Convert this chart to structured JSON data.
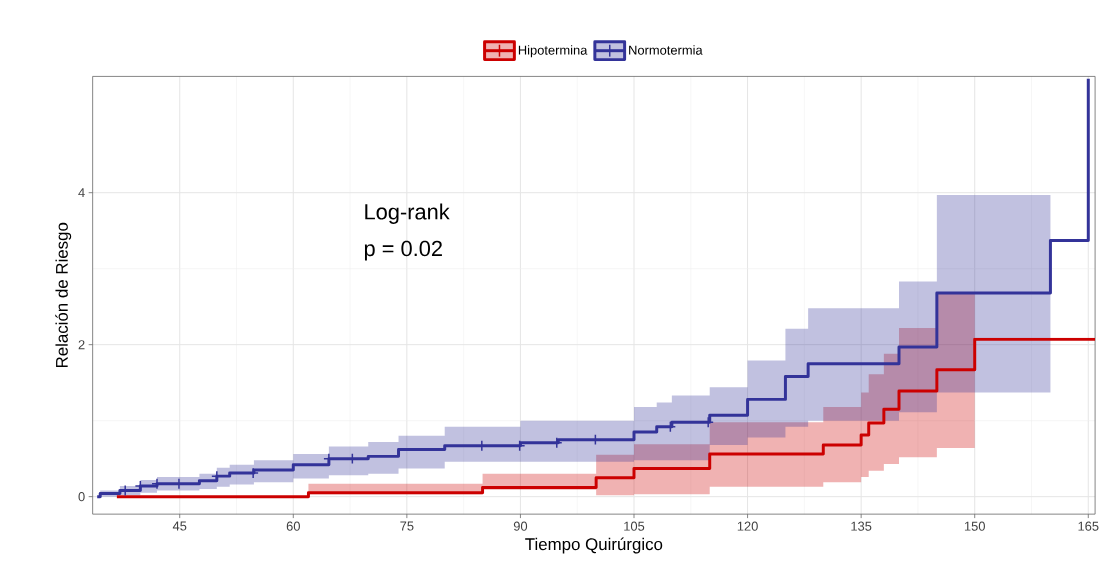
{
  "chart_data": {
    "type": "step",
    "xlabel": "Tiempo Quirúrgico",
    "ylabel": "Relación de Riesgo",
    "xlim": [
      33.5,
      165.9
    ],
    "ylim": [
      -0.23,
      5.53
    ],
    "xticks": [
      45,
      60,
      75,
      90,
      105,
      120,
      135,
      150,
      165
    ],
    "yticks": [
      0,
      2,
      4
    ],
    "grid": true,
    "legend": "top",
    "line_style": "solid",
    "annotations": [
      "Log-rank",
      "p = 0.02"
    ],
    "series": [
      {
        "name": "Hipotermina",
        "color": "#cc0000",
        "x": [
          36.7,
          62,
          85,
          100,
          105,
          115,
          130,
          135,
          136,
          138,
          140,
          145,
          150,
          150,
          165.9
        ],
        "values": [
          0,
          0.05,
          0.12,
          0.25,
          0.37,
          0.56,
          0.68,
          0.81,
          0.97,
          1.15,
          1.39,
          1.67,
          2.07,
          2.07,
          2.07
        ],
        "lower": [
          null,
          0.03,
          0.09,
          0.02,
          0.03,
          0.13,
          0.19,
          0.26,
          0.34,
          0.43,
          0.52,
          0.64,
          0.64,
          null,
          null
        ],
        "upper": [
          null,
          0.17,
          0.3,
          0.55,
          0.69,
          0.98,
          1.18,
          1.37,
          1.61,
          1.88,
          2.22,
          2.69,
          2.69,
          null,
          null
        ]
      },
      {
        "name": "Normotermia",
        "color": "#333399",
        "x": [
          34.1,
          34.5,
          37.1,
          39.8,
          42,
          47.6,
          49.9,
          51.6,
          54.8,
          60,
          64.7,
          69.9,
          73.9,
          80,
          90,
          95,
          105,
          108,
          110,
          115,
          120,
          125,
          128,
          140,
          145,
          160,
          160,
          165
        ],
        "values": [
          0,
          0.04,
          0.08,
          0.14,
          0.17,
          0.21,
          0.27,
          0.31,
          0.35,
          0.42,
          0.5,
          0.53,
          0.62,
          0.67,
          0.71,
          0.75,
          0.85,
          0.92,
          0.98,
          1.07,
          1.28,
          1.58,
          1.75,
          1.97,
          2.68,
          3.37,
          3.37,
          5.5
        ],
        "lower": [
          null,
          0.0,
          0.02,
          0.05,
          0.08,
          0.1,
          0.13,
          0.16,
          0.19,
          0.24,
          0.28,
          0.3,
          0.37,
          0.46,
          0.46,
          0.46,
          0.48,
          0.48,
          0.48,
          0.68,
          0.78,
          0.92,
          1.0,
          1.11,
          1.37,
          1.37,
          null,
          null
        ],
        "upper": [
          null,
          0.08,
          0.14,
          0.22,
          0.26,
          0.3,
          0.38,
          0.42,
          0.48,
          0.56,
          0.66,
          0.72,
          0.8,
          0.92,
          1.0,
          1.0,
          1.18,
          1.24,
          1.33,
          1.44,
          1.79,
          2.21,
          2.48,
          2.83,
          3.97,
          3.97,
          null,
          null
        ]
      },
      {
        "type": "scatter",
        "marker": "cross",
        "color": "#333399",
        "x": [
          37.8,
          39.8,
          42,
          44.9,
          49.9,
          54.7,
          64.7,
          67.8,
          84.9,
          89.9,
          94.8,
          99.9,
          109.8,
          114.8
        ],
        "values": [
          0.08,
          0.14,
          0.17,
          0.17,
          0.27,
          0.31,
          0.5,
          0.5,
          0.67,
          0.67,
          0.71,
          0.75,
          0.92,
          0.98
        ]
      }
    ]
  }
}
